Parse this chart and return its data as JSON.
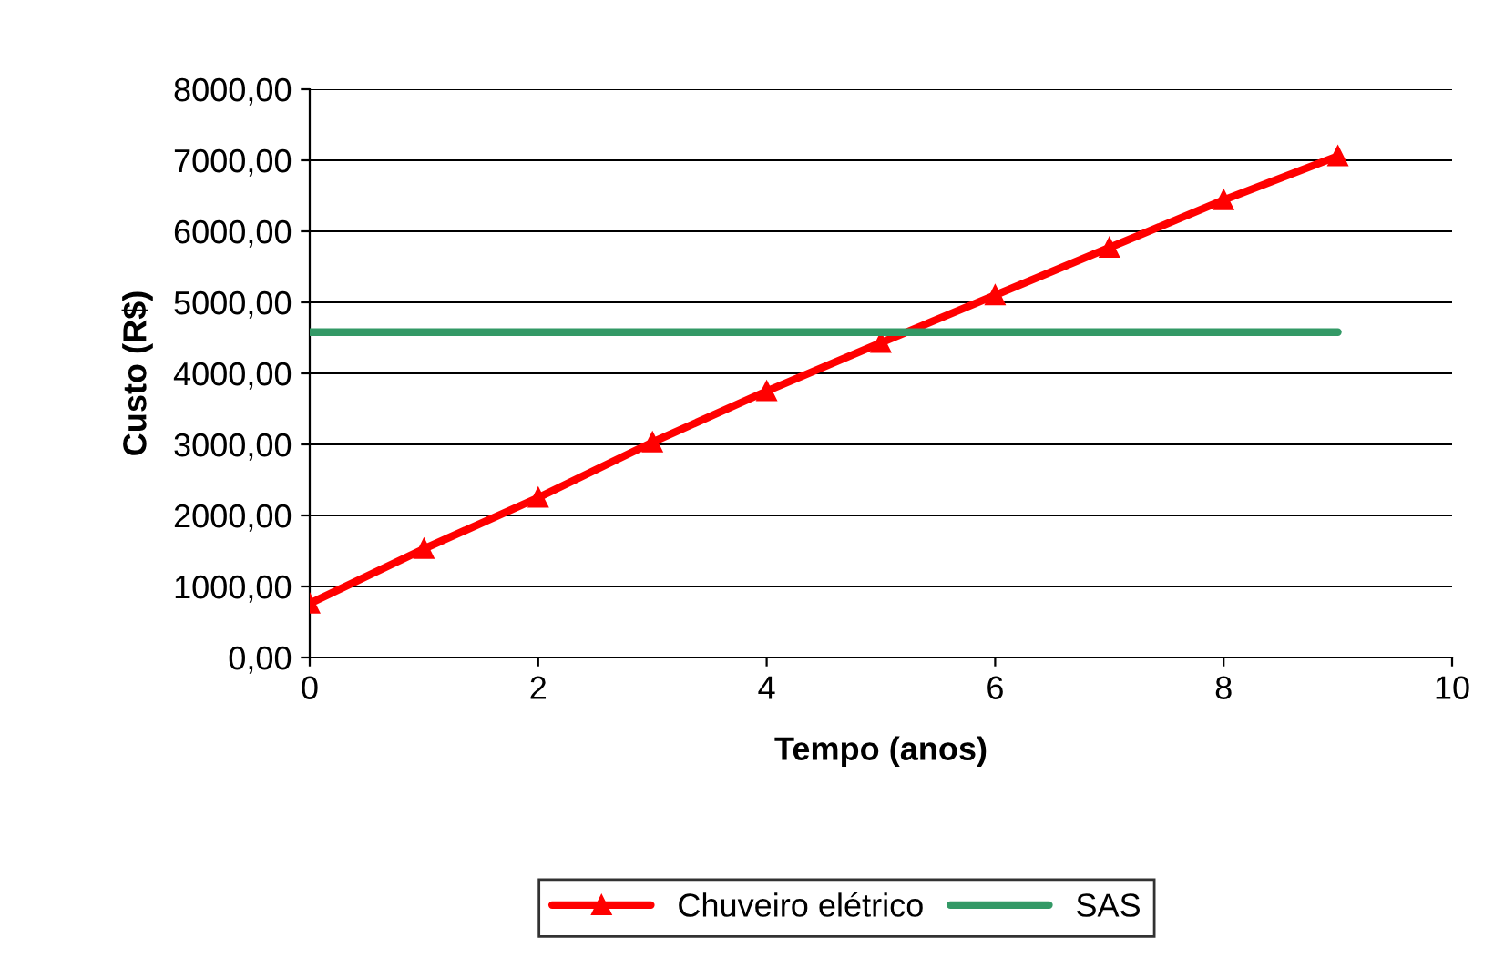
{
  "chart_data": {
    "type": "line",
    "xlabel": "Tempo (anos)",
    "ylabel": "Custo (R$)",
    "x": [
      0,
      1,
      2,
      3,
      4,
      5,
      6,
      7,
      8,
      9
    ],
    "series": [
      {
        "name": "Chuveiro elétrico",
        "color": "#ff0000",
        "marker": "triangle",
        "values": [
          760,
          1530,
          2250,
          3030,
          3750,
          4430,
          5100,
          5770,
          6440,
          7060
        ]
      },
      {
        "name": "SAS",
        "color": "#339966",
        "marker": "none",
        "values": [
          4580,
          4580,
          4580,
          4580,
          4580,
          4580,
          4580,
          4580,
          4580,
          4580
        ]
      }
    ],
    "xlim": [
      0,
      10
    ],
    "xticks": [
      0,
      2,
      4,
      6,
      8,
      10
    ],
    "ylim": [
      0,
      8000
    ],
    "yticks": [
      {
        "value": 0,
        "label": "0,00"
      },
      {
        "value": 1000,
        "label": "1000,00"
      },
      {
        "value": 2000,
        "label": "2000,00"
      },
      {
        "value": 3000,
        "label": "3000,00"
      },
      {
        "value": 4000,
        "label": "4000,00"
      },
      {
        "value": 5000,
        "label": "5000,00"
      },
      {
        "value": 6000,
        "label": "6000,00"
      },
      {
        "value": 7000,
        "label": "7000,00"
      },
      {
        "value": 8000,
        "label": "8000,00"
      }
    ],
    "grid": "y",
    "legend": "bottom"
  }
}
